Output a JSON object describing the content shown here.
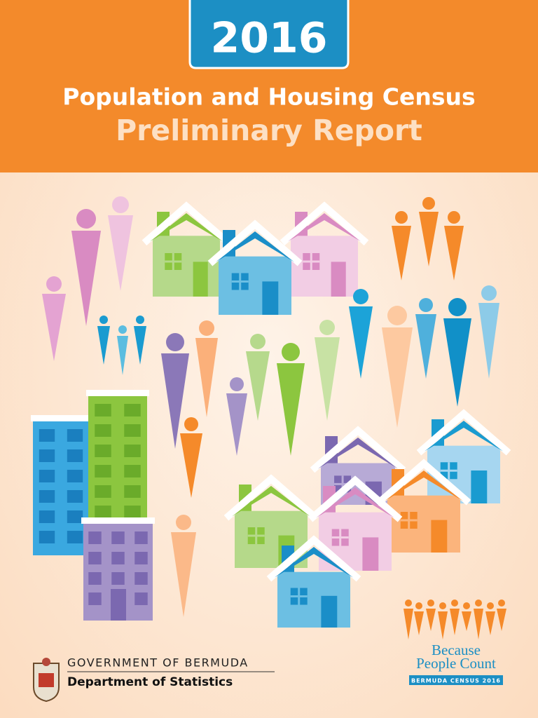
{
  "header": {
    "year": "2016",
    "title": "Population and Housing Census",
    "subtitle": "Preliminary Report"
  },
  "footer": {
    "government": "GOVERNMENT OF BERMUDA",
    "department": "Department of Statistics",
    "logo": {
      "line1": "Because",
      "line2": "People Count",
      "tag": "BERMUDA CENSUS 2016"
    }
  }
}
